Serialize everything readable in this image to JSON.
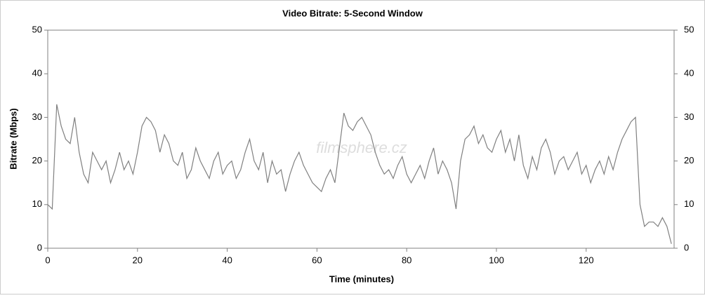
{
  "chart_data": {
    "type": "line",
    "title": "Video Bitrate: 5-Second Window",
    "x_label": "Time (minutes)",
    "y_label": "Bitrate (Mbps)",
    "watermark": "filmsphere.cz",
    "x": [
      0,
      1,
      2,
      3,
      4,
      5,
      6,
      7,
      8,
      9,
      10,
      11,
      12,
      13,
      14,
      15,
      16,
      17,
      18,
      19,
      20,
      21,
      22,
      23,
      24,
      25,
      26,
      27,
      28,
      29,
      30,
      31,
      32,
      33,
      34,
      35,
      36,
      37,
      38,
      39,
      40,
      41,
      42,
      43,
      44,
      45,
      46,
      47,
      48,
      49,
      50,
      51,
      52,
      53,
      54,
      55,
      56,
      57,
      58,
      59,
      60,
      61,
      62,
      63,
      64,
      65,
      66,
      67,
      68,
      69,
      70,
      71,
      72,
      73,
      74,
      75,
      76,
      77,
      78,
      79,
      80,
      81,
      82,
      83,
      84,
      85,
      86,
      87,
      88,
      89,
      90,
      91,
      92,
      93,
      94,
      95,
      96,
      97,
      98,
      99,
      100,
      101,
      102,
      103,
      104,
      105,
      106,
      107,
      108,
      109,
      110,
      111,
      112,
      113,
      114,
      115,
      116,
      117,
      118,
      119,
      120,
      121,
      122,
      123,
      124,
      125,
      126,
      127,
      128,
      129,
      130,
      131,
      132,
      133,
      134,
      135,
      136,
      137,
      138,
      139
    ],
    "series": [
      {
        "name": "Video Bitrate",
        "color": "#808080",
        "values": [
          10,
          9,
          33,
          28,
          25,
          24,
          30,
          22,
          17,
          15,
          22,
          20,
          18,
          20,
          15,
          18,
          22,
          18,
          20,
          17,
          22,
          28,
          30,
          29,
          27,
          22,
          26,
          24,
          20,
          19,
          22,
          16,
          18,
          23,
          20,
          18,
          16,
          20,
          22,
          17,
          19,
          20,
          16,
          18,
          22,
          25,
          20,
          18,
          22,
          15,
          20,
          17,
          18,
          13,
          17,
          20,
          22,
          19,
          17,
          15,
          14,
          13,
          16,
          18,
          15,
          23,
          31,
          28,
          27,
          29,
          30,
          28,
          26,
          22,
          19,
          17,
          18,
          16,
          19,
          21,
          17,
          15,
          17,
          19,
          16,
          20,
          23,
          17,
          20,
          18,
          15,
          9,
          20,
          25,
          26,
          28,
          24,
          26,
          23,
          22,
          25,
          27,
          22,
          25,
          20,
          26,
          19,
          16,
          21,
          18,
          23,
          25,
          22,
          17,
          20,
          21,
          18,
          20,
          22,
          17,
          19,
          15,
          18,
          20,
          17,
          21,
          18,
          22,
          25,
          27,
          29,
          30,
          10,
          5,
          6,
          6,
          5,
          7,
          5,
          1
        ]
      }
    ],
    "xlim": [
      0,
      139.6
    ],
    "xticks": [
      0,
      20,
      40,
      60,
      80,
      100,
      120
    ],
    "ylim": [
      0,
      50
    ],
    "yticks": [
      0,
      10,
      20,
      30,
      40,
      50
    ],
    "y2lim": [
      0,
      50
    ],
    "y2ticks": [
      0,
      10,
      20,
      30,
      40,
      50
    ]
  }
}
